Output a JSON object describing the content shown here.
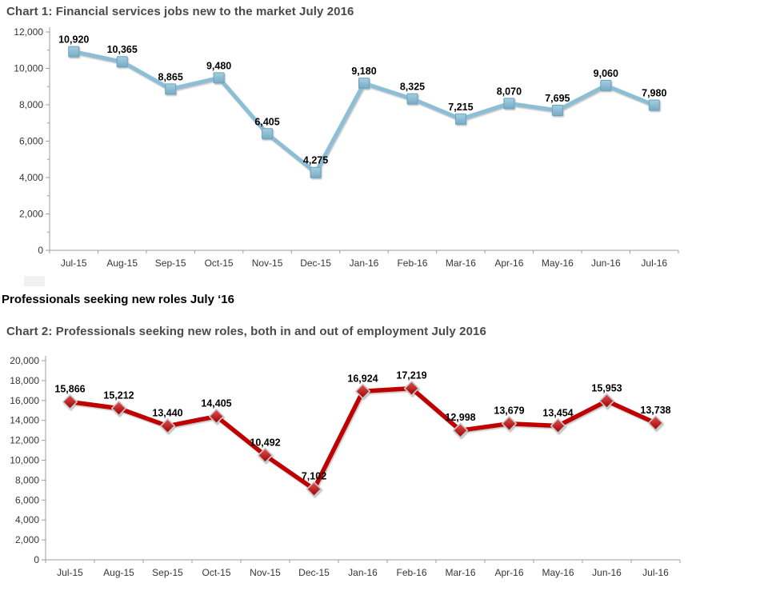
{
  "section_heading": "Professionals seeking new roles July ‘16",
  "axis_color": "#9e9e9e",
  "chart_data": [
    {
      "type": "line",
      "title": "Chart 1: Financial services jobs new to the market July 2016",
      "categories": [
        "Jul-15",
        "Aug-15",
        "Sep-15",
        "Oct-15",
        "Nov-15",
        "Dec-15",
        "Jan-16",
        "Feb-16",
        "Mar-16",
        "Apr-16",
        "May-16",
        "Jun-16",
        "Jul-16"
      ],
      "values": [
        10920,
        10365,
        8865,
        9480,
        6405,
        4275,
        9180,
        8325,
        7215,
        8070,
        7695,
        9060,
        7980
      ],
      "ylim": [
        0,
        12000
      ],
      "ytick_step": 2000,
      "grid": false,
      "legend": "none",
      "data_labels": true,
      "line_color": "#8cbfd6",
      "marker_shape": "square",
      "marker_fill_top": "#a4cfe0",
      "marker_fill_bottom": "#76abc5",
      "marker_border": "#6ba2bd"
    },
    {
      "type": "line",
      "title": "Chart 2: Professionals seeking new roles, both in and out of employment July 2016",
      "categories": [
        "Jul-15",
        "Aug-15",
        "Sep-15",
        "Oct-15",
        "Nov-15",
        "Dec-15",
        "Jan-16",
        "Feb-16",
        "Mar-16",
        "Apr-16",
        "May-16",
        "Jun-16",
        "Jul-16"
      ],
      "values": [
        15866,
        15212,
        13440,
        14405,
        10492,
        7102,
        16924,
        17219,
        12998,
        13679,
        13454,
        15953,
        13738
      ],
      "ylim": [
        0,
        20000
      ],
      "ytick_step": 2000,
      "grid": false,
      "legend": "none",
      "data_labels": true,
      "line_color": "#c00000",
      "marker_shape": "diamond",
      "marker_fill_top": "#e25353",
      "marker_fill_bottom": "#9a0000",
      "marker_border": "#c9c9c9"
    }
  ]
}
